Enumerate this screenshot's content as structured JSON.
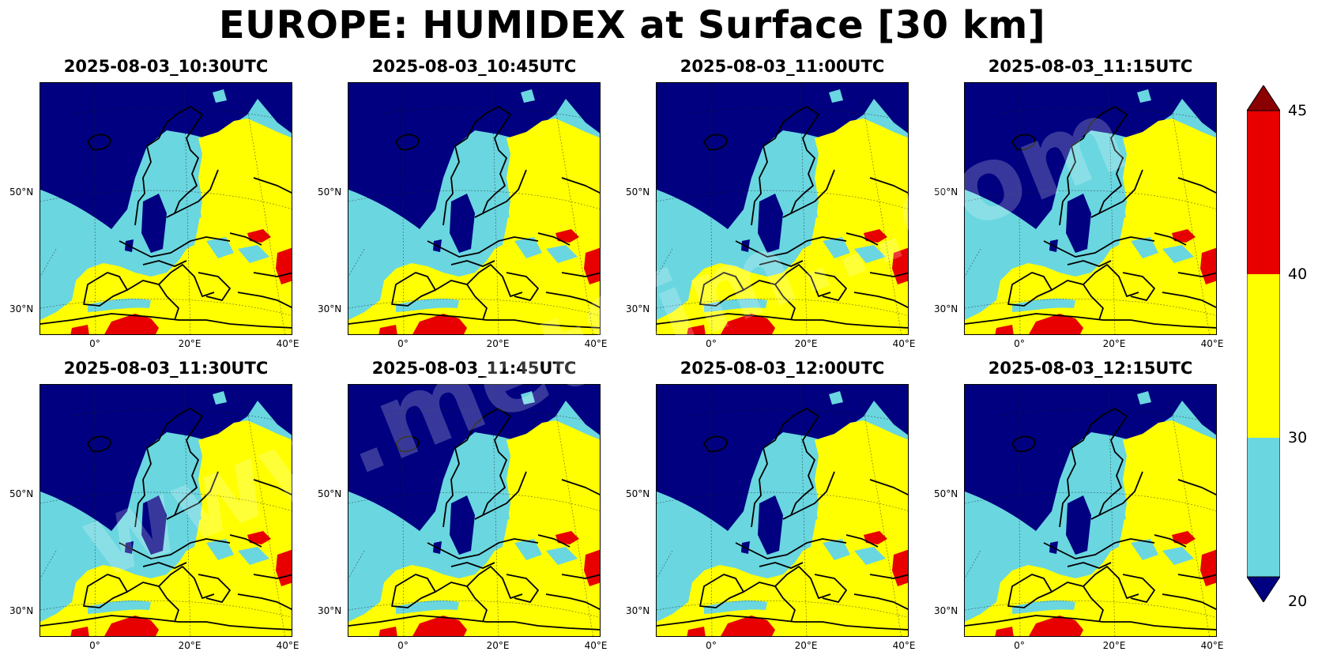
{
  "title": "EUROPE: HUMIDEX at Surface [30 km]",
  "panels": [
    {
      "time": "2025-08-03_10:30UTC"
    },
    {
      "time": "2025-08-03_10:45UTC"
    },
    {
      "time": "2025-08-03_11:00UTC"
    },
    {
      "time": "2025-08-03_11:15UTC"
    },
    {
      "time": "2025-08-03_11:30UTC"
    },
    {
      "time": "2025-08-03_11:45UTC"
    },
    {
      "time": "2025-08-03_12:00UTC"
    },
    {
      "time": "2025-08-03_12:15UTC"
    }
  ],
  "axes": {
    "lat_ticks": [
      "50°N",
      "30°N"
    ],
    "lon_ticks": [
      "0°",
      "20°E",
      "40°E"
    ]
  },
  "colorbar": {
    "ticks": [
      "45",
      "40",
      "30",
      "20"
    ],
    "colors": {
      "below_20": "#000080",
      "20_30": "#6ad6e0",
      "30_40": "#ffff00",
      "40_45": "#e80000",
      "above_45": "#8b0000"
    }
  },
  "watermark": "www.metSim...com"
}
